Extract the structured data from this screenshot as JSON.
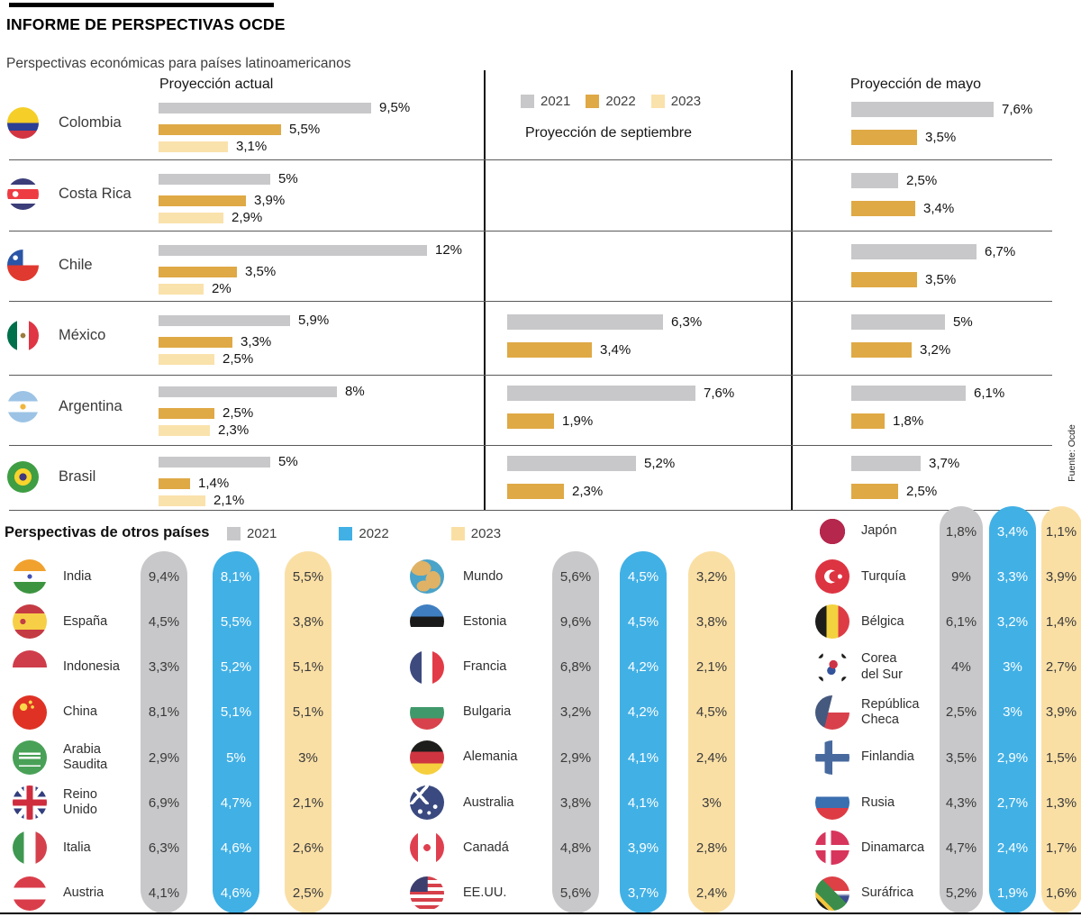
{
  "header": {
    "title": "INFORME DE PERSPECTIVAS OCDE",
    "subtitle": "Perspectivas económicas para países latinoamericanos"
  },
  "source": "Fuente: Ocde",
  "colors": {
    "y2021_gray": "#c8c8ca",
    "y2022_gold": "#dfa945",
    "y2023_cream_latam": "#fae2ac",
    "y2022_blue": "#41b0e5",
    "y2023_cream_others": "#fadfa5",
    "text_dark": "#131313",
    "text_on_blue": "#ffffff"
  },
  "chart_data": [
    {
      "type": "bar",
      "orientation": "horizontal",
      "unit": "%",
      "title": "Perspectivas económicas para países latinoamericanos",
      "years": [
        "2021",
        "2022",
        "2023"
      ],
      "columns": [
        "Proyección actual",
        "Proyección de septiembre",
        "Proyección de mayo"
      ],
      "legend_position": "top-center",
      "rows": [
        {
          "country": "Colombia",
          "actual": [
            9.5,
            5.5,
            3.1
          ],
          "septiembre": null,
          "mayo": [
            7.6,
            3.5
          ]
        },
        {
          "country": "Costa Rica",
          "actual": [
            5,
            3.9,
            2.9
          ],
          "septiembre": null,
          "mayo": [
            2.5,
            3.4
          ]
        },
        {
          "country": "Chile",
          "actual": [
            12,
            3.5,
            2
          ],
          "septiembre": null,
          "mayo": [
            6.7,
            3.5
          ]
        },
        {
          "country": "México",
          "actual": [
            5.9,
            3.3,
            2.5
          ],
          "septiembre": [
            6.3,
            3.4
          ],
          "mayo": [
            5,
            3.2
          ]
        },
        {
          "country": "Argentina",
          "actual": [
            8,
            2.5,
            2.3
          ],
          "septiembre": [
            7.6,
            1.9
          ],
          "mayo": [
            6.1,
            1.8
          ]
        },
        {
          "country": "Brasil",
          "actual": [
            5,
            1.4,
            2.1
          ],
          "septiembre": [
            5.2,
            2.3
          ],
          "mayo": [
            3.7,
            2.5
          ]
        }
      ]
    },
    {
      "type": "table",
      "unit": "%",
      "title": "Perspectivas de otros países",
      "years": [
        "2021",
        "2022",
        "2023"
      ],
      "groups": [
        [
          {
            "country": "India",
            "values": [
              9.4,
              8.1,
              5.5
            ]
          },
          {
            "country": "España",
            "values": [
              4.5,
              5.5,
              3.8
            ]
          },
          {
            "country": "Indonesia",
            "values": [
              3.3,
              5.2,
              5.1
            ]
          },
          {
            "country": "China",
            "values": [
              8.1,
              5.1,
              5.1
            ]
          },
          {
            "country": "Arabia Saudita",
            "values": [
              2.9,
              5,
              3
            ]
          },
          {
            "country": "Reino Unido",
            "values": [
              6.9,
              4.7,
              2.1
            ]
          },
          {
            "country": "Italia",
            "values": [
              6.3,
              4.6,
              2.6
            ]
          },
          {
            "country": "Austria",
            "values": [
              4.1,
              4.6,
              2.5
            ]
          }
        ],
        [
          {
            "country": "Mundo",
            "values": [
              5.6,
              4.5,
              3.2
            ]
          },
          {
            "country": "Estonia",
            "values": [
              9.6,
              4.5,
              3.8
            ]
          },
          {
            "country": "Francia",
            "values": [
              6.8,
              4.2,
              2.1
            ]
          },
          {
            "country": "Bulgaria",
            "values": [
              3.2,
              4.2,
              4.5
            ]
          },
          {
            "country": "Alemania",
            "values": [
              2.9,
              4.1,
              2.4
            ]
          },
          {
            "country": "Australia",
            "values": [
              3.8,
              4.1,
              3
            ]
          },
          {
            "country": "Canadá",
            "values": [
              4.8,
              3.9,
              2.8
            ]
          },
          {
            "country": "EE.UU.",
            "values": [
              5.6,
              3.7,
              2.4
            ]
          }
        ],
        [
          {
            "country": "Japón",
            "values": [
              1.8,
              3.4,
              1.1
            ]
          },
          {
            "country": "Turquía",
            "values": [
              9,
              3.3,
              3.9
            ]
          },
          {
            "country": "Bélgica",
            "values": [
              6.1,
              3.2,
              1.4
            ]
          },
          {
            "country": "Corea del Sur",
            "values": [
              4,
              3,
              2.7
            ]
          },
          {
            "country": "República Checa",
            "values": [
              2.5,
              3,
              3.9
            ]
          },
          {
            "country": "Finlandia",
            "values": [
              3.5,
              2.9,
              1.5
            ]
          },
          {
            "country": "Rusia",
            "values": [
              4.3,
              2.7,
              1.3
            ]
          },
          {
            "country": "Dinamarca",
            "values": [
              4.7,
              2.4,
              1.7
            ]
          },
          {
            "country": "Suráfrica",
            "values": [
              5.2,
              1.9,
              1.6
            ]
          }
        ]
      ]
    }
  ],
  "flags": {
    "Colombia": "linear-gradient(180deg,#f5ce27 0 50%,#2b3f94 50% 75%,#d23442 75%)",
    "Costa Rica": "radial-gradient(circle at 26% 50%,#fff 0 10%,transparent 11%),linear-gradient(180deg,#3b3e79 0 20%,#fff 20% 34%,#ee3c43 34% 66%,#fff 66% 80%,#3b3e79 80%)",
    "Chile": "radial-gradient(circle at 26% 26%,#fff 0 7%,transparent 8%),linear-gradient(#2b55a7,#2b55a7) left top/50% 50% no-repeat,linear-gradient(180deg,#fff 0 50%,#e0392f 50%)",
    "México": "radial-gradient(circle at 50% 50%,#9b7c3c 0 11%,transparent 12%),linear-gradient(90deg,#00704a 0 32%,#fff 32% 68%,#df3545 68%)",
    "Argentina": "radial-gradient(circle at 50% 50%,#f2b53c 0 12%,transparent 13%),linear-gradient(180deg,#9cc3e5 0 33%,#fff 33% 67%,#9cc3e5 67%)",
    "Brasil": "radial-gradient(circle at 50% 50%,#41387f 0 16%,#f8d42c 17% 38%,transparent 39%),linear-gradient(#3f9e43,#3f9e43)",
    "India": "radial-gradient(circle at 50% 50%,#3f51b5 0 9%,transparent 10%),linear-gradient(180deg,#f1a12d 0 34%,#fff 34% 66%,#3c9440 66%)",
    "España": "radial-gradient(circle at 30% 50%,#c23f47 0 9%,transparent 10%),linear-gradient(180deg,#c53b43 0 26%,#f7cf46 26% 74%,#c53b43 74%)",
    "Indonesia": "linear-gradient(180deg,#cf3d4b 0 50%,#fff 50%)",
    "China": "radial-gradient(circle at 32% 34%,#f9d94a 0 11%,transparent 12%),radial-gradient(circle at 52% 20%,#f9d94a 0 5%,transparent 6%),radial-gradient(circle at 58% 34%,#f9d94a 0 5%,transparent 6%),linear-gradient(#df3224,#df3224)",
    "Arabia Saudita": "linear-gradient(180deg,transparent 0 36%,#fff 36% 42%,transparent 42% 48%,#fff 48% 54%,transparent 54% 72%,#fff 72% 76%,transparent 76%) 50% 50%/64% 100% no-repeat,linear-gradient(#48a157,#48a157)",
    "Reino Unido": "linear-gradient(180deg,transparent 0 41%,#cf2c3e 41% 59%,transparent 59%),linear-gradient(90deg,transparent 0 41%,#cf2c3e 41% 59%,transparent 59%),linear-gradient(180deg,transparent 0 33%,#fff 33% 67%,transparent 67%),linear-gradient(90deg,transparent 0 33%,#fff 33% 67%,transparent 67%),linear-gradient(52deg,transparent 0 45%,#fff 45% 55%,transparent 55%),linear-gradient(-52deg,transparent 0 45%,#fff 45% 55%,transparent 55%),linear-gradient(#323e7e,#323e7e)",
    "Italia": "linear-gradient(90deg,#3e9850 0 33%,#fff 33% 67%,#d4414c 67%)",
    "Austria": "linear-gradient(180deg,#da3d4a 0 33%,#fff 33% 67%,#da3d4a 67%)",
    "Mundo": "radial-gradient(ellipse 30% 22% at 32% 26%,#dfb266 0 99%,transparent 100%),radial-gradient(ellipse 22% 26% at 68% 60%,#dfb266 0 99%,transparent 100%),radial-gradient(ellipse 20% 16% at 40% 78%,#dfb266 0 99%,transparent 100%),linear-gradient(#4aa3c8,#4aa3c8)",
    "Estonia": "linear-gradient(180deg,#3f7fc1 0 36%,#1a1a1a 36% 66%,#fff 66%)",
    "Francia": "linear-gradient(90deg,#3d4a7e 0 34%,#fff 34% 66%,#e23b47 66%)",
    "Bulgaria": "linear-gradient(180deg,#fff 0 34%,#40996b 34% 67%,#d8424c 67%)",
    "Alemania": "linear-gradient(180deg,#1d1d1b 0 33%,#cf3540 33% 67%,#f6cf3e 67%)",
    "Australia": "linear-gradient(48deg,transparent 0 44%,#fff 44% 56%,transparent 56%) left top/55% 55% no-repeat,linear-gradient(-48deg,transparent 0 44%,#fff 44% 56%,transparent 56%) left top/55% 55% no-repeat,radial-gradient(circle at 74% 62%,#fff 0 6%,transparent 7%),radial-gradient(circle at 56% 80%,#fff 0 5%,transparent 6%),radial-gradient(circle at 30% 76%,#fff 0 6%,transparent 7%),linear-gradient(#3a4a80,#3a4a80)",
    "Canadá": "radial-gradient(circle at 50% 50%,#df4050 0 14%,transparent 15%),linear-gradient(90deg,#df4050 0 24%,#fff 24% 76%,#df4050 76%)",
    "EE.UU.": "linear-gradient(#3c3e6e,#3c3e6e) left top/52% 46% no-repeat,repeating-linear-gradient(180deg,#d6404a 0 4px,#fff 4px 8px)",
    "Japón": "radial-gradient(circle at 50% 50%,#b5274c 0 52%,#fff 53%)",
    "Turquía": "radial-gradient(circle at 72% 50%,#fff 0 7%,transparent 8%),radial-gradient(circle at 56% 50%,#dd3442 0 20%,transparent 21%),radial-gradient(circle at 46% 50%,#fff 0 26%,transparent 27%),linear-gradient(#dd3442,#dd3442)",
    "Bélgica": "linear-gradient(90deg,#1d1d1b 0 33%,#f3d23f 33% 67%,#dd3c45 67%)",
    "Corea del Sur": "radial-gradient(circle at 53% 41%,#cd3347 0 15%,transparent 16%),radial-gradient(circle at 47% 59%,#33539c 0 15%,transparent 16%),radial-gradient(circle at 14% 14%,#1d1d1b 0 7%,transparent 8%),radial-gradient(circle at 86% 14%,#1d1d1b 0 7%,transparent 8%),radial-gradient(circle at 14% 86%,#1d1d1b 0 7%,transparent 8%),radial-gradient(circle at 86% 86%,#1d1d1b 0 7%,transparent 8%),linear-gradient(#fff,#fff)",
    "República Checa": "linear-gradient(104deg,#45597e 0 40%,transparent 40.5%),linear-gradient(180deg,#fff 0 50%,#d8414b 50%)",
    "Finlandia": "linear-gradient(90deg,transparent 0 28%,#47699e 28% 50%,transparent 50%),linear-gradient(180deg,transparent 0 40%,#47699e 40% 62%,transparent 62%),linear-gradient(#fff,#fff)",
    "Rusia": "linear-gradient(180deg,#fff 0 33%,#3a6fb0 33% 66%,#dd3c45 66%)",
    "Dinamarca": "linear-gradient(90deg,transparent 0 30%,#fff 30% 46%,transparent 46%),linear-gradient(180deg,transparent 0 42%,#fff 42% 58%,transparent 58%),linear-gradient(#d8355c,#d8355c)",
    "Suráfrica": "linear-gradient(45deg,#1d1d1b 0 20%,transparent 20.5%),linear-gradient(45deg,transparent 19%,#f2c53b 20% 28%,transparent 28.5%),linear-gradient(45deg,transparent 27%,#3c8d4b 28% 56%,transparent 56.5%),linear-gradient(180deg,#dd4045 0 42%,#fff 42% 50%,#3c4d8f 58%)"
  }
}
